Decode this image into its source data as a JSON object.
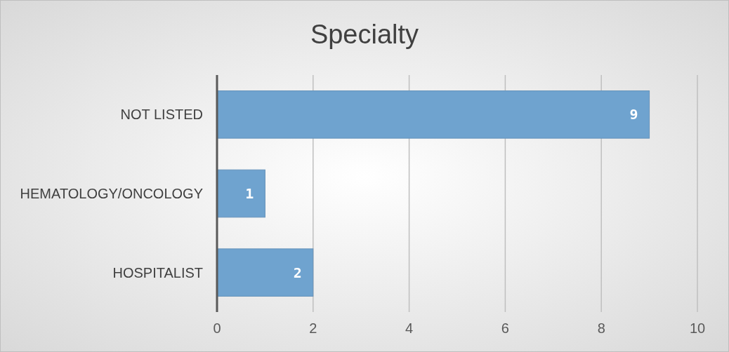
{
  "chart_data": {
    "type": "bar",
    "title": "Specialty",
    "orientation": "horizontal",
    "categories": [
      "NOT LISTED",
      "HEMATOLOGY/ONCOLOGY",
      "HOSPITALIST"
    ],
    "series": [
      {
        "color": "#6fa3cf",
        "values": [
          9,
          1,
          2
        ]
      }
    ],
    "xlim": [
      0,
      10
    ],
    "xticks": [
      0,
      2,
      4,
      6,
      8,
      10
    ],
    "grid": "x",
    "data_labels": true
  }
}
